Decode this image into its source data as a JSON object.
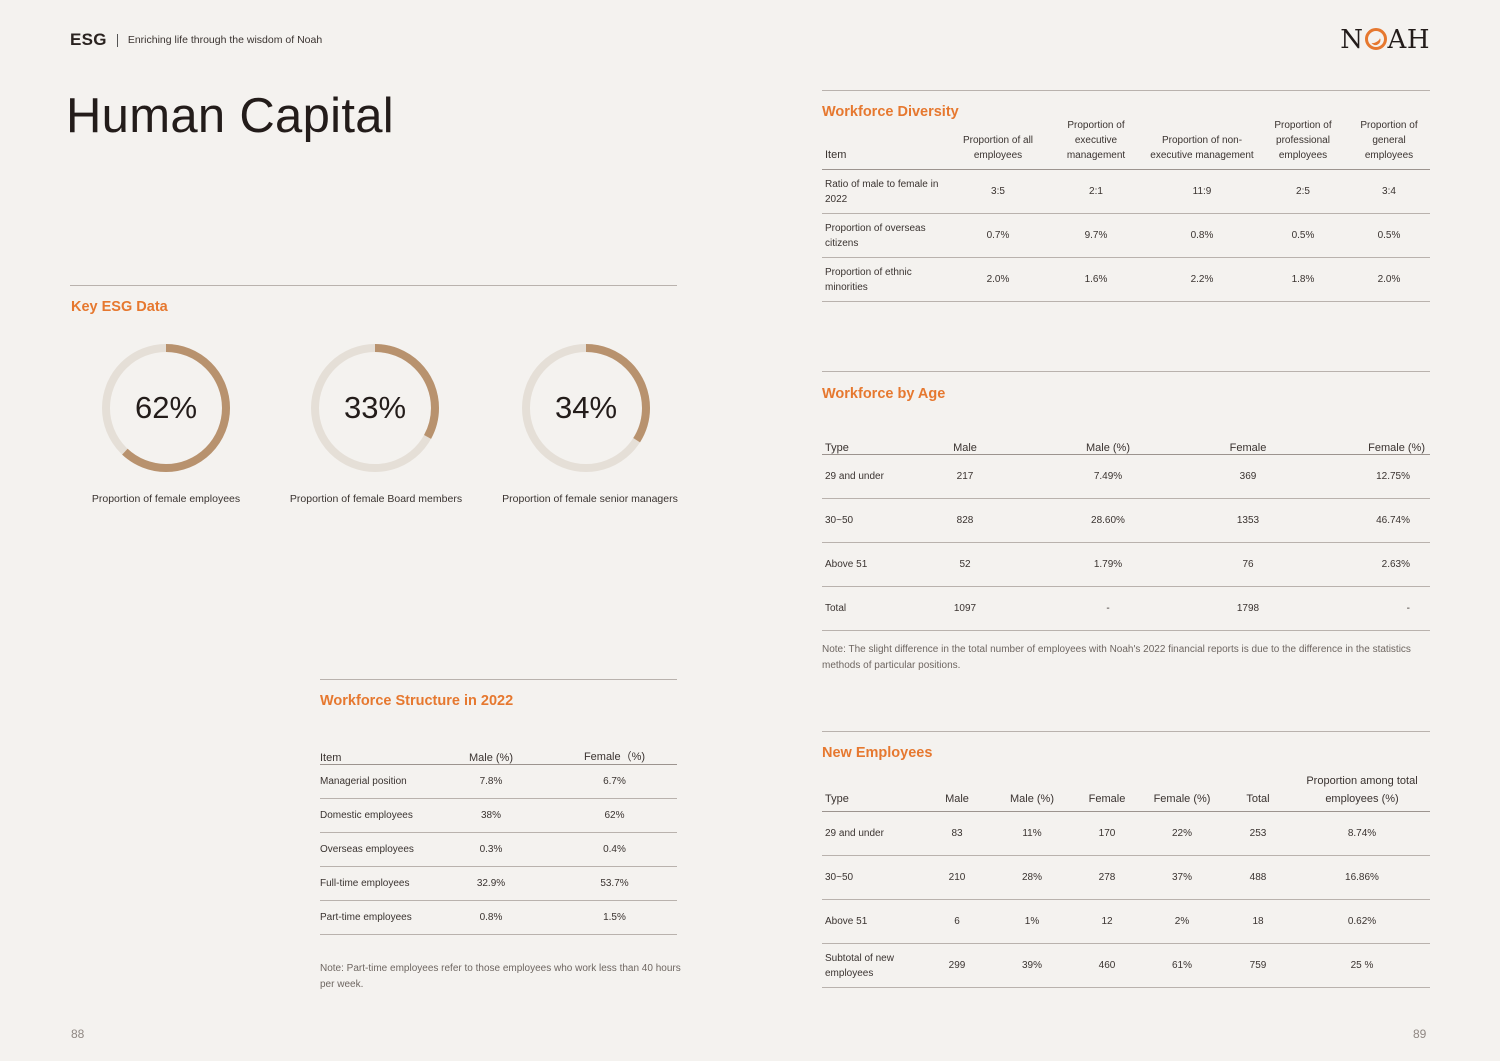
{
  "header": {
    "esg": "ESG",
    "tagline": "Enriching life through the wisdom of Noah",
    "logo_left": "N",
    "logo_right": "AH"
  },
  "page_title": "Human Capital",
  "key_esg": {
    "title": "Key ESG Data",
    "donuts": [
      {
        "value": "62%",
        "fraction": 0.62,
        "label": "Proportion of female employees"
      },
      {
        "value": "33%",
        "fraction": 0.33,
        "label": "Proportion of female Board members"
      },
      {
        "value": "34%",
        "fraction": 0.34,
        "label": "Proportion of female senior managers"
      }
    ],
    "colors": {
      "fill": "#b8926e",
      "track": "#e5dfd7",
      "accent": "#e6782f"
    }
  },
  "workforce_structure": {
    "title": "Workforce Structure in 2022",
    "headers": [
      "Item",
      "Male (%)",
      "Female（%)"
    ],
    "rows": [
      [
        "Managerial position",
        "7.8%",
        "6.7%"
      ],
      [
        "Domestic employees",
        "38%",
        "62%"
      ],
      [
        "Overseas employees",
        "0.3%",
        "0.4%"
      ],
      [
        "Full-time employees",
        "32.9%",
        "53.7%"
      ],
      [
        "Part-time employees",
        "0.8%",
        "1.5%"
      ]
    ],
    "note": "Note: Part-time employees refer to those employees who work less than 40 hours per week."
  },
  "workforce_diversity": {
    "title": "Workforce Diversity",
    "headers": [
      "Item",
      "Proportion of all employees",
      "Proportion of executive management",
      "Proportion of non-executive management",
      "Proportion of professional employees",
      "Proportion of general employees"
    ],
    "rows": [
      [
        "Ratio of male to female in 2022",
        "3:5",
        "2:1",
        "11:9",
        "2:5",
        "3:4"
      ],
      [
        "Proportion of overseas citizens",
        "0.7%",
        "9.7%",
        "0.8%",
        "0.5%",
        "0.5%"
      ],
      [
        "Proportion of ethnic minorities",
        "2.0%",
        "1.6%",
        "2.2%",
        "1.8%",
        "2.0%"
      ]
    ]
  },
  "workforce_age": {
    "title": "Workforce by Age",
    "headers": [
      "Type",
      "Male",
      "Male (%)",
      "Female",
      "Female (%)"
    ],
    "rows": [
      [
        "29 and under",
        "217",
        "7.49%",
        "369",
        "12.75%"
      ],
      [
        "30~50",
        "828",
        "28.60%",
        "1353",
        "46.74%"
      ],
      [
        "Above 51",
        "52",
        "1.79%",
        "76",
        "2.63%"
      ],
      [
        "Total",
        "1097",
        "-",
        "1798",
        "-"
      ]
    ],
    "note": "Note: The slight difference in the total number of employees with Noah's 2022 financial reports is due to the difference in the statistics methods of particular positions."
  },
  "new_employees": {
    "title": "New Employees",
    "headers": [
      "Type",
      "Male",
      "Male (%)",
      "Female",
      "Female (%)",
      "Total",
      "Proportion among total employees (%)"
    ],
    "rows": [
      [
        "29 and under",
        "83",
        "11%",
        "170",
        "22%",
        "253",
        "8.74%"
      ],
      [
        "30~50",
        "210",
        "28%",
        "278",
        "37%",
        "488",
        "16.86%"
      ],
      [
        "Above 51",
        "6",
        "1%",
        "12",
        "2%",
        "18",
        "0.62%"
      ],
      [
        "Subtotal of new employees",
        "299",
        "39%",
        "460",
        "61%",
        "759",
        "25 %"
      ]
    ]
  },
  "page_numbers": {
    "left": "88",
    "right": "89"
  }
}
